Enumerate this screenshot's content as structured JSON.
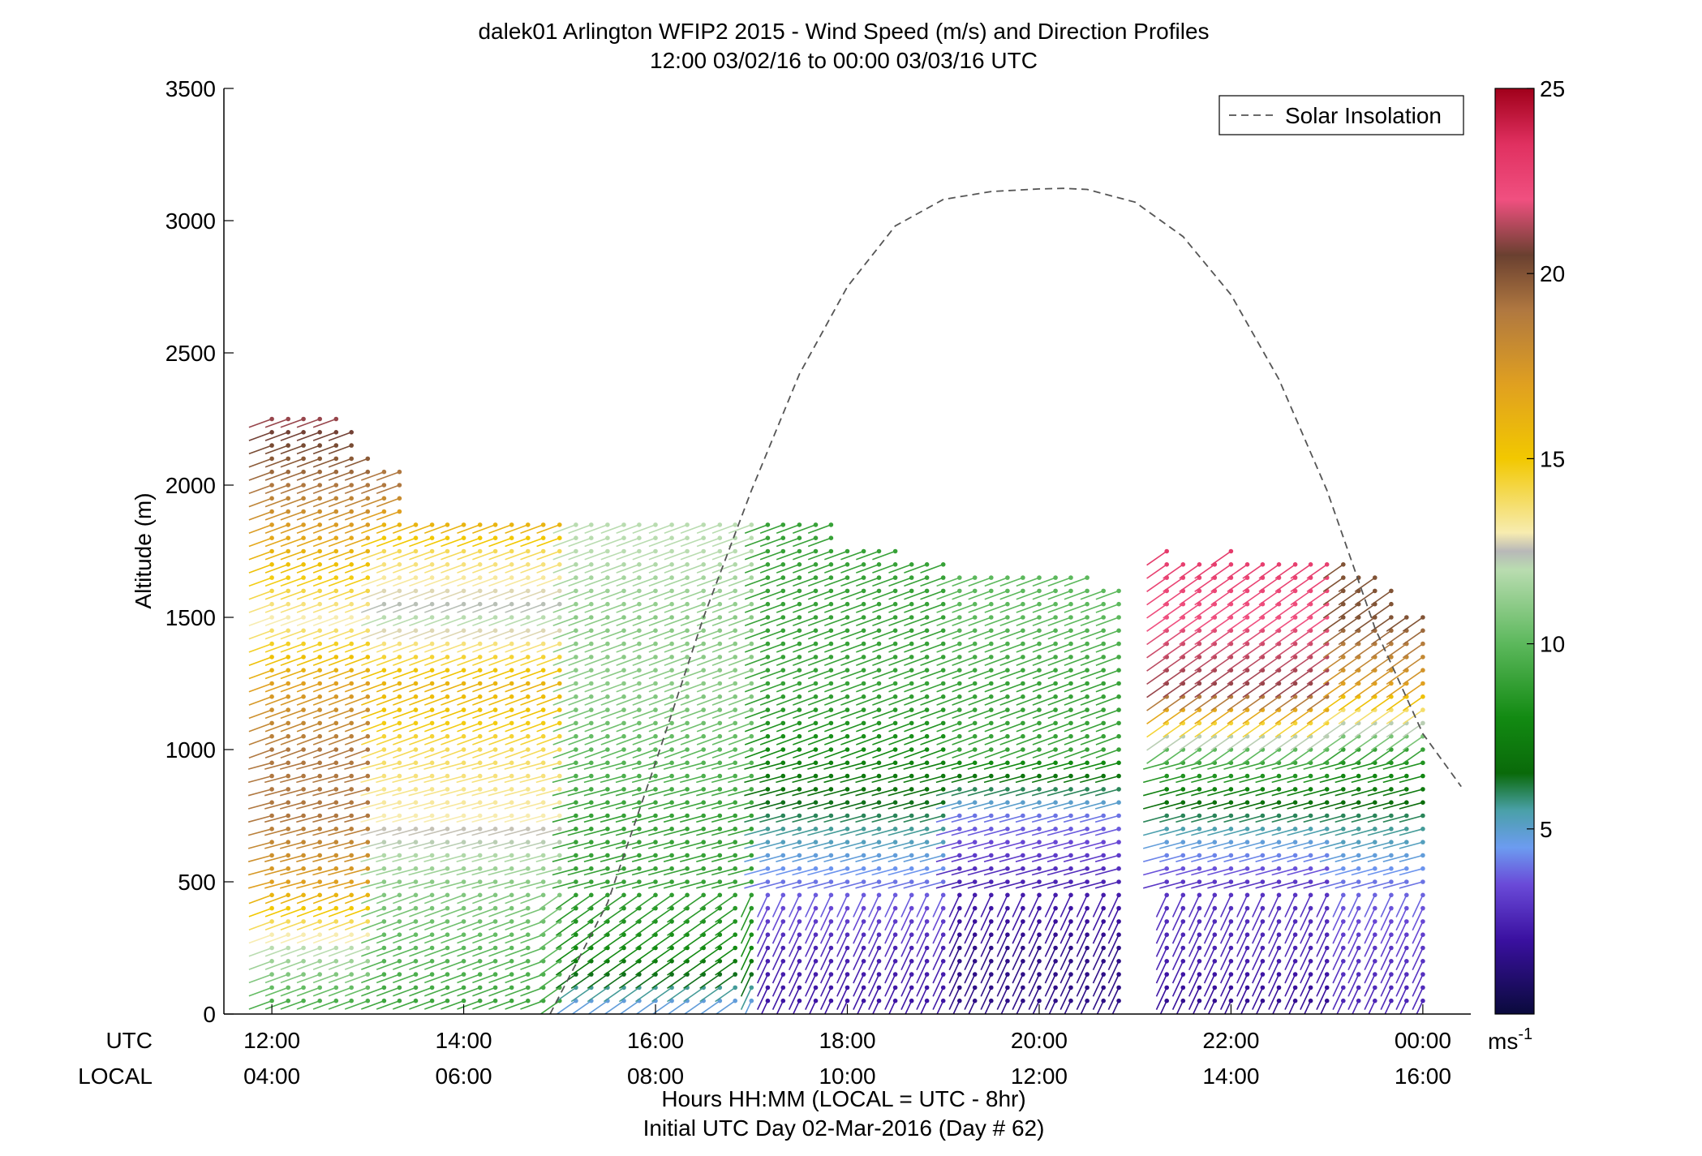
{
  "chart_data": {
    "type": "wind-barb profile (scatter)",
    "title": "dalek01 Arlington WFIP2 2015 - Wind Speed (m/s) and Direction Profiles",
    "subtitle": "12:00 03/02/16 to 00:00 03/03/16  UTC",
    "ylabel": "Altitude (m)",
    "xlabel": "Hours HH:MM  (LOCAL = UTC - 8hr)",
    "xlabel2": "Initial UTC Day 02-Mar-2016 (Day # 62)",
    "xlim_hours": [
      11.5,
      24.5
    ],
    "ylim": [
      0,
      3500
    ],
    "yticks": [
      "0",
      "500",
      "1000",
      "1500",
      "2000",
      "2500",
      "3000",
      "3500"
    ],
    "xtick_row_utc_label": "UTC",
    "xtick_row_local_label": "LOCAL",
    "xticks_utc": [
      "12:00",
      "14:00",
      "16:00",
      "18:00",
      "20:00",
      "22:00",
      "00:00"
    ],
    "xticks_local": [
      "04:00",
      "06:00",
      "08:00",
      "10:00",
      "12:00",
      "14:00",
      "16:00"
    ],
    "legend": {
      "entries": [
        "Solar Insolation"
      ],
      "placement": "top-right",
      "line_style": "dashed",
      "line_color": "#555555"
    },
    "colorbar": {
      "range": [
        0,
        25
      ],
      "ticks": [
        "5",
        "10",
        "15",
        "20",
        "25"
      ],
      "unit_label": "ms",
      "unit_exponent": "-1",
      "color_stops": [
        {
          "value": 0,
          "color": "#0a0a3c"
        },
        {
          "value": 2,
          "color": "#3a10a0"
        },
        {
          "value": 3.5,
          "color": "#6a4ad8"
        },
        {
          "value": 4.5,
          "color": "#6c9cf0"
        },
        {
          "value": 5.5,
          "color": "#4aa0a8"
        },
        {
          "value": 6.5,
          "color": "#0a6a0a"
        },
        {
          "value": 8,
          "color": "#128a12"
        },
        {
          "value": 10,
          "color": "#5cb85c"
        },
        {
          "value": 12,
          "color": "#b9dcb0"
        },
        {
          "value": 12.5,
          "color": "#b8b8b8"
        },
        {
          "value": 13,
          "color": "#f7ecb0"
        },
        {
          "value": 15,
          "color": "#f2c800"
        },
        {
          "value": 17,
          "color": "#e0a020"
        },
        {
          "value": 19,
          "color": "#b07840"
        },
        {
          "value": 20.5,
          "color": "#6a4030"
        },
        {
          "value": 22,
          "color": "#f05080"
        },
        {
          "value": 23.5,
          "color": "#e03060"
        },
        {
          "value": 25,
          "color": "#a0001a"
        }
      ]
    },
    "solar_insolation_curve": {
      "x_hours": [
        14.9,
        15.5,
        16.0,
        16.5,
        17.0,
        17.5,
        18.0,
        18.5,
        19.0,
        19.5,
        20.0,
        20.25,
        20.5,
        21.0,
        21.5,
        22.0,
        22.5,
        23.0,
        23.5,
        24.0,
        24.4
      ],
      "altitude_m": [
        0,
        420,
        950,
        1500,
        1980,
        2420,
        2750,
        2980,
        3080,
        3110,
        3120,
        3122,
        3118,
        3070,
        2940,
        2720,
        2400,
        1980,
        1460,
        1060,
        860
      ]
    },
    "profile_times_hours": [
      12.0,
      12.17,
      12.33,
      12.5,
      12.67,
      12.83,
      13.0,
      13.17,
      13.33,
      13.5,
      13.67,
      13.83,
      14.0,
      14.17,
      14.33,
      14.5,
      14.67,
      14.83,
      15.0,
      15.17,
      15.33,
      15.5,
      15.67,
      15.83,
      16.0,
      16.17,
      16.33,
      16.5,
      16.67,
      16.83,
      17.0,
      17.17,
      17.33,
      17.5,
      17.67,
      17.83,
      18.0,
      18.17,
      18.33,
      18.5,
      18.67,
      18.83,
      19.0,
      19.17,
      19.33,
      19.5,
      19.67,
      19.83,
      20.0,
      20.17,
      20.33,
      20.5,
      20.67,
      20.83,
      21.33,
      21.5,
      21.67,
      21.83,
      22.0,
      22.17,
      22.33,
      22.5,
      22.67,
      22.83,
      23.0,
      23.17,
      23.33,
      23.5,
      23.67,
      23.83,
      24.0
    ],
    "profile_altitude_step_m": 50,
    "profile_top_altitude_m": [
      2250,
      2250,
      2250,
      2250,
      2250,
      2200,
      2100,
      2050,
      2050,
      1850,
      1850,
      1850,
      1850,
      1850,
      1850,
      1850,
      1850,
      1850,
      1850,
      1850,
      1850,
      1850,
      1850,
      1850,
      1850,
      1850,
      1850,
      1850,
      1850,
      1850,
      1850,
      1850,
      1850,
      1850,
      1850,
      1850,
      1750,
      1750,
      1750,
      1750,
      1700,
      1700,
      1700,
      1650,
      1650,
      1650,
      1650,
      1650,
      1650,
      1650,
      1650,
      1650,
      1600,
      1600,
      1750,
      1700,
      1700,
      1700,
      1750,
      1700,
      1700,
      1700,
      1700,
      1700,
      1700,
      1700,
      1650,
      1650,
      1600,
      1500,
      1500
    ],
    "wind_speed_ms_by_height": [
      {
        "period": "12:00-13:00",
        "altitude_m": [
          0,
          250,
          500,
          750,
          1000,
          1250,
          1500,
          1750,
          2000,
          2250
        ],
        "speed": [
          9,
          12,
          17,
          19,
          19,
          17,
          13,
          16,
          19,
          21
        ]
      },
      {
        "period": "13:00-15:00",
        "altitude_m": [
          0,
          250,
          500,
          750,
          1000,
          1250,
          1500,
          1750,
          2000
        ],
        "speed": [
          9,
          10,
          11,
          13,
          14,
          16,
          12,
          14,
          19
        ]
      },
      {
        "period": "15:00-17:00",
        "altitude_m": [
          0,
          250,
          500,
          750,
          1000,
          1250,
          1500,
          1750
        ],
        "speed": [
          4,
          8,
          9,
          9,
          10,
          11,
          11,
          12
        ]
      },
      {
        "period": "17:00-19:00",
        "altitude_m": [
          0,
          250,
          500,
          750,
          1000,
          1250,
          1500,
          1700
        ],
        "speed": [
          2,
          2.5,
          4,
          6,
          8,
          9,
          9,
          9
        ]
      },
      {
        "period": "19:00-21:00",
        "altitude_m": [
          0,
          250,
          500,
          750,
          1000,
          1250,
          1500,
          1650
        ],
        "speed": [
          1.5,
          1.5,
          2.5,
          4,
          9,
          9,
          10,
          10
        ]
      },
      {
        "period": "21:20-23:00",
        "altitude_m": [
          0,
          250,
          500,
          750,
          1000,
          1250,
          1500,
          1750
        ],
        "speed": [
          1.5,
          2.5,
          3,
          6,
          10,
          21,
          22,
          23
        ]
      },
      {
        "period": "23:00-00:00",
        "altitude_m": [
          0,
          250,
          500,
          750,
          1000,
          1250,
          1500
        ],
        "speed": [
          2.5,
          3,
          4,
          6,
          9,
          17,
          20
        ]
      }
    ]
  }
}
